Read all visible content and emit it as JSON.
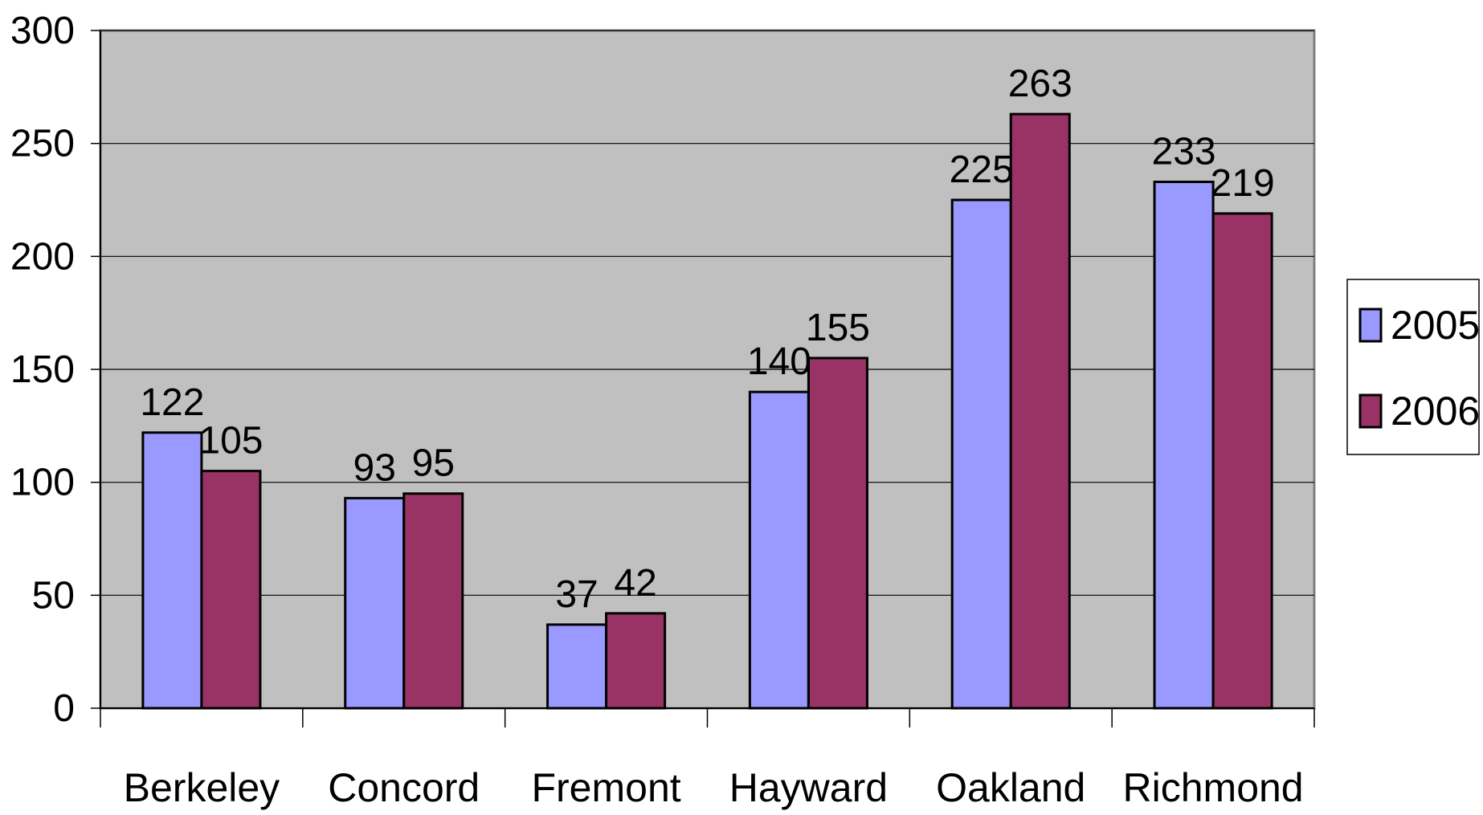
{
  "chart_data": {
    "type": "bar",
    "categories": [
      "Berkeley",
      "Concord",
      "Fremont",
      "Hayward",
      "Oakland",
      "Richmond"
    ],
    "series": [
      {
        "name": "2005",
        "values": [
          122,
          93,
          37,
          140,
          225,
          233
        ],
        "color": "#9999ff"
      },
      {
        "name": "2006",
        "values": [
          105,
          95,
          42,
          155,
          263,
          219
        ],
        "color": "#993366"
      }
    ],
    "title": "",
    "xlabel": "",
    "ylabel": "",
    "ylim": [
      0,
      300
    ],
    "yticks": [
      0,
      50,
      100,
      150,
      200,
      250,
      300
    ],
    "grid": true,
    "legend": "right",
    "plot_background": "#c0c0c0",
    "gridline_color": "#000000"
  }
}
